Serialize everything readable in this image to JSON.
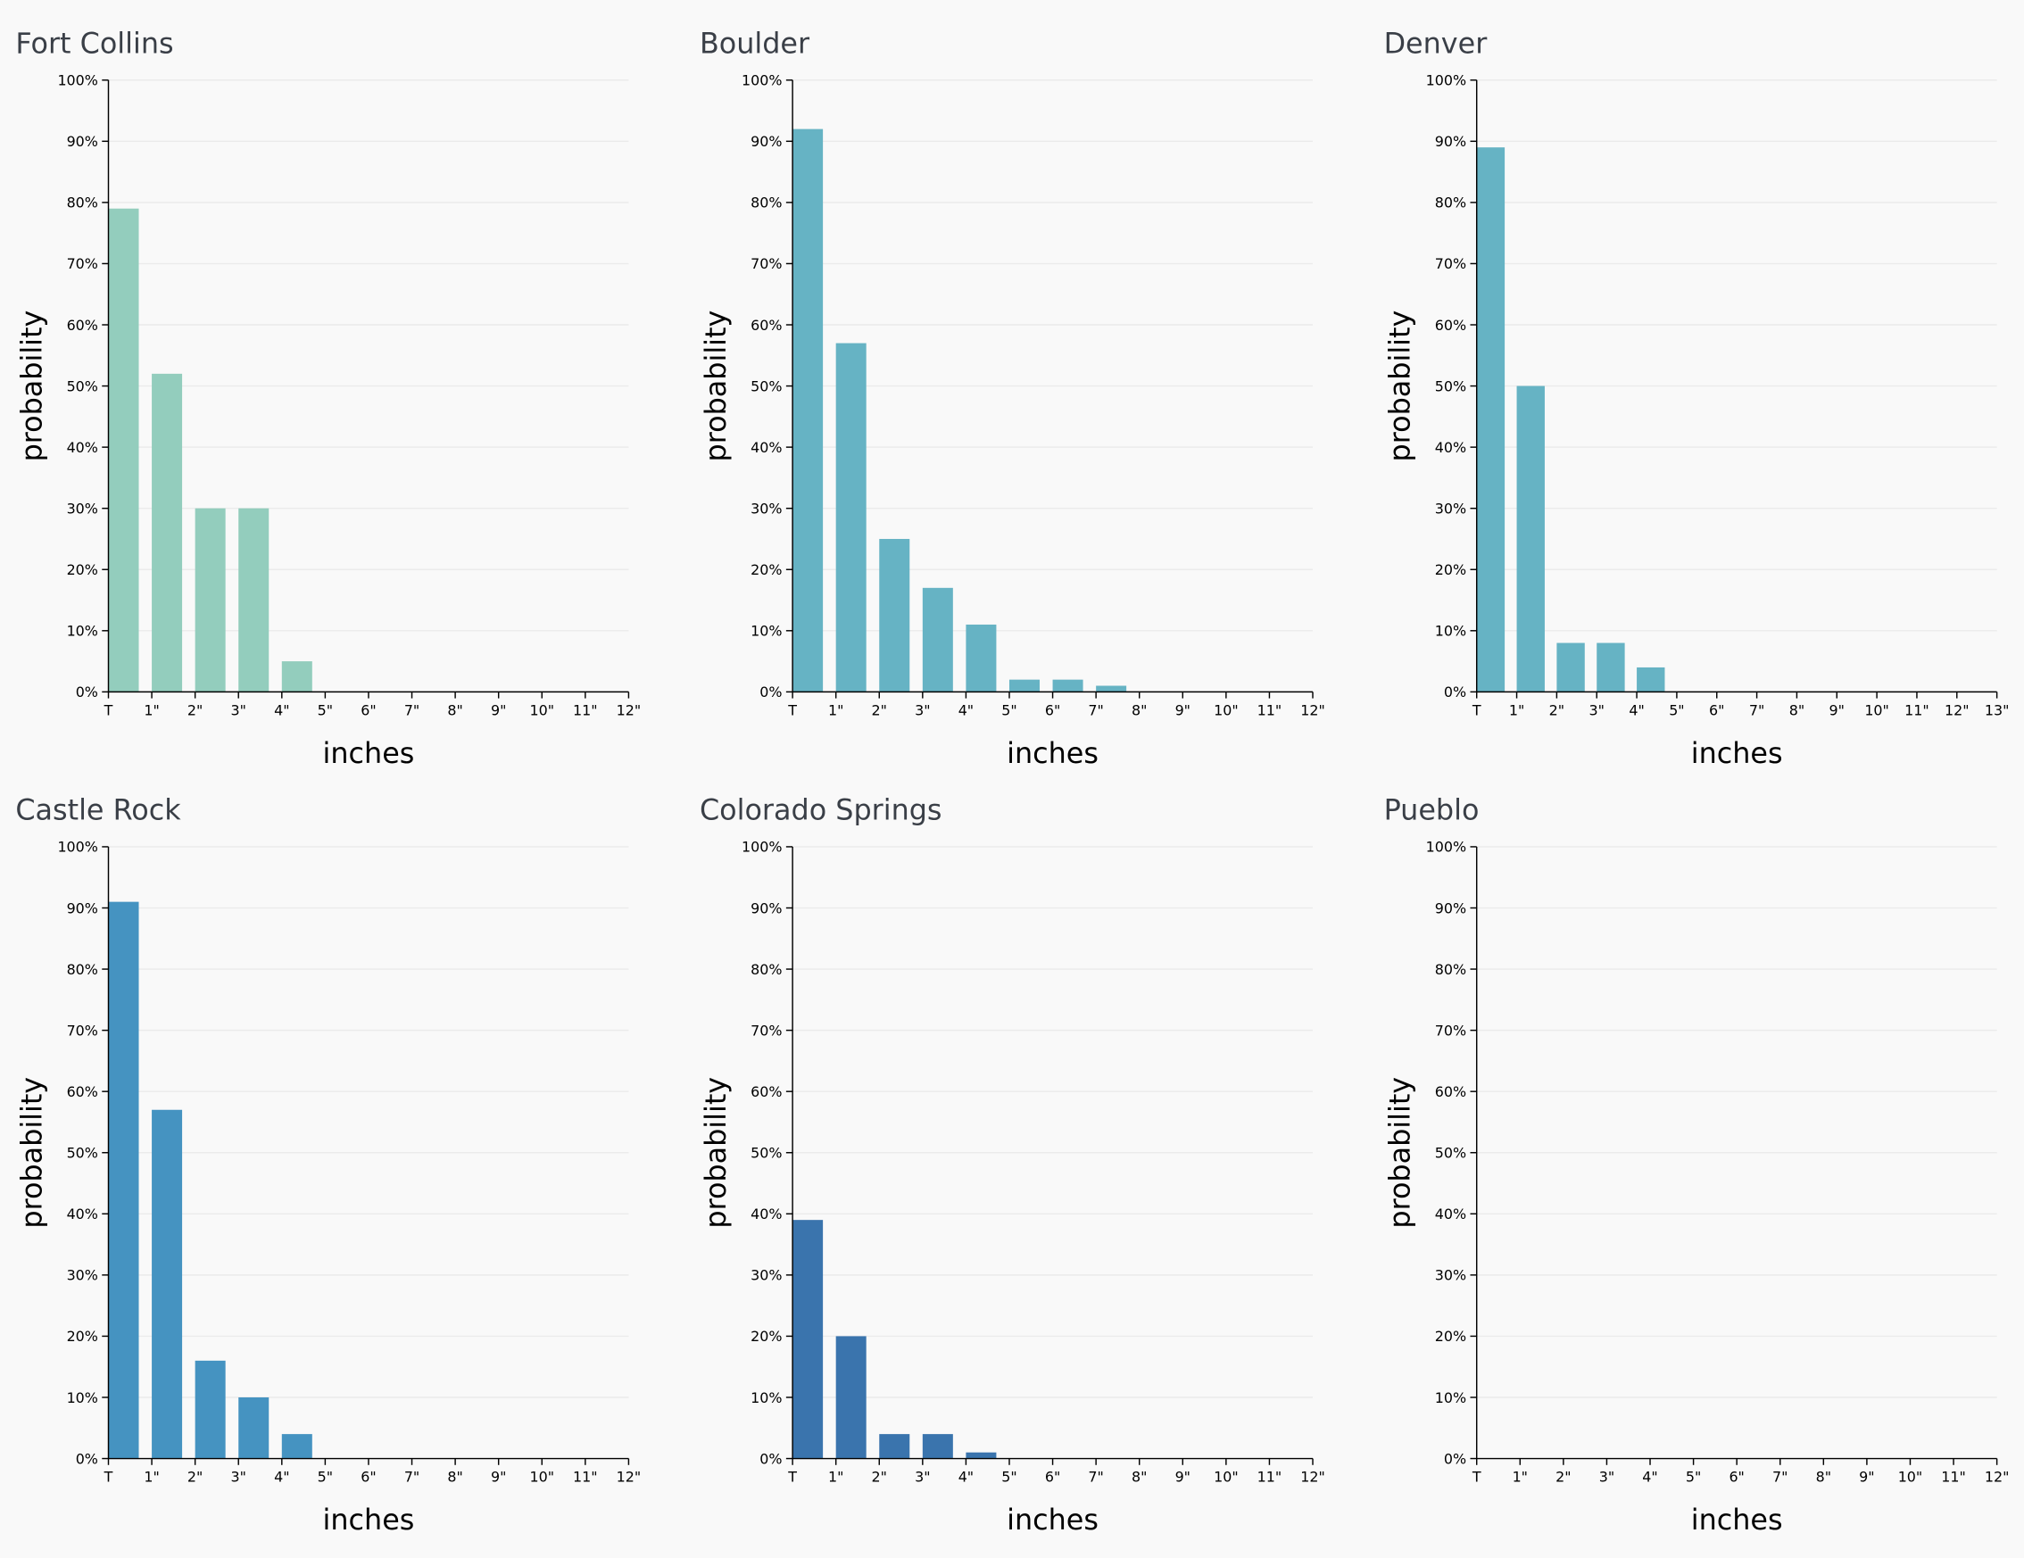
{
  "chart_data": [
    {
      "type": "histogram",
      "title": "Fort Collins",
      "xlabel": "inches",
      "ylabel": "probability",
      "color": "#93cdbd",
      "bins": [
        0,
        1,
        2,
        3,
        4,
        5,
        6,
        7,
        8,
        9,
        10,
        11,
        12
      ],
      "values": [
        79,
        52,
        30,
        30,
        5,
        0,
        0,
        0,
        0,
        0,
        0,
        0
      ],
      "xlim": [
        0,
        12
      ],
      "xticks": [
        {
          "value": 0,
          "label": "T"
        },
        {
          "value": 1,
          "label": "1\""
        },
        {
          "value": 2,
          "label": "2\""
        },
        {
          "value": 3,
          "label": "3\""
        },
        {
          "value": 4,
          "label": "4\""
        },
        {
          "value": 5,
          "label": "5\""
        },
        {
          "value": 6,
          "label": "6\""
        },
        {
          "value": 7,
          "label": "7\""
        },
        {
          "value": 8,
          "label": "8\""
        },
        {
          "value": 9,
          "label": "9\""
        },
        {
          "value": 10,
          "label": "10\""
        },
        {
          "value": 11,
          "label": "11\""
        },
        {
          "value": 12,
          "label": "12\""
        }
      ],
      "ylim": [
        0,
        100
      ],
      "yticks": [
        {
          "value": 0,
          "label": "0%"
        },
        {
          "value": 10,
          "label": "10%"
        },
        {
          "value": 20,
          "label": "20%"
        },
        {
          "value": 30,
          "label": "30%"
        },
        {
          "value": 40,
          "label": "40%"
        },
        {
          "value": 50,
          "label": "50%"
        },
        {
          "value": 60,
          "label": "60%"
        },
        {
          "value": 70,
          "label": "70%"
        },
        {
          "value": 80,
          "label": "80%"
        },
        {
          "value": 90,
          "label": "90%"
        },
        {
          "value": 100,
          "label": "100%"
        }
      ],
      "grid": true
    },
    {
      "type": "histogram",
      "title": "Boulder",
      "xlabel": "inches",
      "ylabel": "probability",
      "color": "#66b3c4",
      "bins": [
        0,
        1,
        2,
        3,
        4,
        5,
        6,
        7,
        8,
        9,
        10,
        11,
        12
      ],
      "values": [
        92,
        57,
        25,
        17,
        11,
        2,
        2,
        1,
        0,
        0,
        0,
        0
      ],
      "xlim": [
        0,
        12
      ],
      "xticks": [
        {
          "value": 0,
          "label": "T"
        },
        {
          "value": 1,
          "label": "1\""
        },
        {
          "value": 2,
          "label": "2\""
        },
        {
          "value": 3,
          "label": "3\""
        },
        {
          "value": 4,
          "label": "4\""
        },
        {
          "value": 5,
          "label": "5\""
        },
        {
          "value": 6,
          "label": "6\""
        },
        {
          "value": 7,
          "label": "7\""
        },
        {
          "value": 8,
          "label": "8\""
        },
        {
          "value": 9,
          "label": "9\""
        },
        {
          "value": 10,
          "label": "10\""
        },
        {
          "value": 11,
          "label": "11\""
        },
        {
          "value": 12,
          "label": "12\""
        }
      ],
      "ylim": [
        0,
        100
      ],
      "yticks": [
        {
          "value": 0,
          "label": "0%"
        },
        {
          "value": 10,
          "label": "10%"
        },
        {
          "value": 20,
          "label": "20%"
        },
        {
          "value": 30,
          "label": "30%"
        },
        {
          "value": 40,
          "label": "40%"
        },
        {
          "value": 50,
          "label": "50%"
        },
        {
          "value": 60,
          "label": "60%"
        },
        {
          "value": 70,
          "label": "70%"
        },
        {
          "value": 80,
          "label": "80%"
        },
        {
          "value": 90,
          "label": "90%"
        },
        {
          "value": 100,
          "label": "100%"
        }
      ],
      "grid": true
    },
    {
      "type": "histogram",
      "title": "Denver",
      "xlabel": "inches",
      "ylabel": "probability",
      "color": "#66b3c4",
      "bins": [
        0,
        1,
        2,
        3,
        4,
        5,
        6,
        7,
        8,
        9,
        10,
        11,
        12,
        13
      ],
      "values": [
        89,
        50,
        8,
        8,
        4,
        0,
        0,
        0,
        0,
        0,
        0,
        0,
        0
      ],
      "xlim": [
        0,
        13
      ],
      "xticks": [
        {
          "value": 0,
          "label": "T"
        },
        {
          "value": 1,
          "label": "1\""
        },
        {
          "value": 2,
          "label": "2\""
        },
        {
          "value": 3,
          "label": "3\""
        },
        {
          "value": 4,
          "label": "4\""
        },
        {
          "value": 5,
          "label": "5\""
        },
        {
          "value": 6,
          "label": "6\""
        },
        {
          "value": 7,
          "label": "7\""
        },
        {
          "value": 8,
          "label": "8\""
        },
        {
          "value": 9,
          "label": "9\""
        },
        {
          "value": 10,
          "label": "10\""
        },
        {
          "value": 11,
          "label": "11\""
        },
        {
          "value": 12,
          "label": "12\""
        },
        {
          "value": 13,
          "label": "13\""
        }
      ],
      "ylim": [
        0,
        100
      ],
      "yticks": [
        {
          "value": 0,
          "label": "0%"
        },
        {
          "value": 10,
          "label": "10%"
        },
        {
          "value": 20,
          "label": "20%"
        },
        {
          "value": 30,
          "label": "30%"
        },
        {
          "value": 40,
          "label": "40%"
        },
        {
          "value": 50,
          "label": "50%"
        },
        {
          "value": 60,
          "label": "60%"
        },
        {
          "value": 70,
          "label": "70%"
        },
        {
          "value": 80,
          "label": "80%"
        },
        {
          "value": 90,
          "label": "90%"
        },
        {
          "value": 100,
          "label": "100%"
        }
      ],
      "grid": true
    },
    {
      "type": "histogram",
      "title": "Castle Rock",
      "xlabel": "inches",
      "ylabel": "probability",
      "color": "#4593c1",
      "bins": [
        0,
        1,
        2,
        3,
        4,
        5,
        6,
        7,
        8,
        9,
        10,
        11,
        12
      ],
      "values": [
        91,
        57,
        16,
        10,
        4,
        0,
        0,
        0,
        0,
        0,
        0,
        0
      ],
      "xlim": [
        0,
        12
      ],
      "xticks": [
        {
          "value": 0,
          "label": "T"
        },
        {
          "value": 1,
          "label": "1\""
        },
        {
          "value": 2,
          "label": "2\""
        },
        {
          "value": 3,
          "label": "3\""
        },
        {
          "value": 4,
          "label": "4\""
        },
        {
          "value": 5,
          "label": "5\""
        },
        {
          "value": 6,
          "label": "6\""
        },
        {
          "value": 7,
          "label": "7\""
        },
        {
          "value": 8,
          "label": "8\""
        },
        {
          "value": 9,
          "label": "9\""
        },
        {
          "value": 10,
          "label": "10\""
        },
        {
          "value": 11,
          "label": "11\""
        },
        {
          "value": 12,
          "label": "12\""
        }
      ],
      "ylim": [
        0,
        100
      ],
      "yticks": [
        {
          "value": 0,
          "label": "0%"
        },
        {
          "value": 10,
          "label": "10%"
        },
        {
          "value": 20,
          "label": "20%"
        },
        {
          "value": 30,
          "label": "30%"
        },
        {
          "value": 40,
          "label": "40%"
        },
        {
          "value": 50,
          "label": "50%"
        },
        {
          "value": 60,
          "label": "60%"
        },
        {
          "value": 70,
          "label": "70%"
        },
        {
          "value": 80,
          "label": "80%"
        },
        {
          "value": 90,
          "label": "90%"
        },
        {
          "value": 100,
          "label": "100%"
        }
      ],
      "grid": true
    },
    {
      "type": "histogram",
      "title": "Colorado Springs",
      "xlabel": "inches",
      "ylabel": "probability",
      "color": "#3a74ad",
      "bins": [
        0,
        1,
        2,
        3,
        4,
        5,
        6,
        7,
        8,
        9,
        10,
        11,
        12
      ],
      "values": [
        39,
        20,
        4,
        4,
        1,
        0,
        0,
        0,
        0,
        0,
        0,
        0
      ],
      "xlim": [
        0,
        12
      ],
      "xticks": [
        {
          "value": 0,
          "label": "T"
        },
        {
          "value": 1,
          "label": "1\""
        },
        {
          "value": 2,
          "label": "2\""
        },
        {
          "value": 3,
          "label": "3\""
        },
        {
          "value": 4,
          "label": "4\""
        },
        {
          "value": 5,
          "label": "5\""
        },
        {
          "value": 6,
          "label": "6\""
        },
        {
          "value": 7,
          "label": "7\""
        },
        {
          "value": 8,
          "label": "8\""
        },
        {
          "value": 9,
          "label": "9\""
        },
        {
          "value": 10,
          "label": "10\""
        },
        {
          "value": 11,
          "label": "11\""
        },
        {
          "value": 12,
          "label": "12\""
        }
      ],
      "ylim": [
        0,
        100
      ],
      "yticks": [
        {
          "value": 0,
          "label": "0%"
        },
        {
          "value": 10,
          "label": "10%"
        },
        {
          "value": 20,
          "label": "20%"
        },
        {
          "value": 30,
          "label": "30%"
        },
        {
          "value": 40,
          "label": "40%"
        },
        {
          "value": 50,
          "label": "50%"
        },
        {
          "value": 60,
          "label": "60%"
        },
        {
          "value": 70,
          "label": "70%"
        },
        {
          "value": 80,
          "label": "80%"
        },
        {
          "value": 90,
          "label": "90%"
        },
        {
          "value": 100,
          "label": "100%"
        }
      ],
      "grid": true
    },
    {
      "type": "histogram",
      "title": "Pueblo",
      "xlabel": "inches",
      "ylabel": "probability",
      "bins": [
        0,
        1,
        2,
        3,
        4,
        5,
        6,
        7,
        8,
        9,
        10,
        11,
        12
      ],
      "values": [
        0,
        0,
        0,
        0,
        0,
        0,
        0,
        0,
        0,
        0,
        0,
        0
      ],
      "xlim": [
        0,
        12
      ],
      "xticks": [
        {
          "value": 0,
          "label": "T"
        },
        {
          "value": 1,
          "label": "1\""
        },
        {
          "value": 2,
          "label": "2\""
        },
        {
          "value": 3,
          "label": "3\""
        },
        {
          "value": 4,
          "label": "4\""
        },
        {
          "value": 5,
          "label": "5\""
        },
        {
          "value": 6,
          "label": "6\""
        },
        {
          "value": 7,
          "label": "7\""
        },
        {
          "value": 8,
          "label": "8\""
        },
        {
          "value": 9,
          "label": "9\""
        },
        {
          "value": 10,
          "label": "10\""
        },
        {
          "value": 11,
          "label": "11\""
        },
        {
          "value": 12,
          "label": "12\""
        }
      ],
      "ylim": [
        0,
        100
      ],
      "yticks": [
        {
          "value": 0,
          "label": "0%"
        },
        {
          "value": 10,
          "label": "10%"
        },
        {
          "value": 20,
          "label": "20%"
        },
        {
          "value": 30,
          "label": "30%"
        },
        {
          "value": 40,
          "label": "40%"
        },
        {
          "value": 50,
          "label": "50%"
        },
        {
          "value": 60,
          "label": "60%"
        },
        {
          "value": 70,
          "label": "70%"
        },
        {
          "value": 80,
          "label": "80%"
        },
        {
          "value": 90,
          "label": "90%"
        },
        {
          "value": 100,
          "label": "100%"
        }
      ],
      "grid": true
    }
  ]
}
